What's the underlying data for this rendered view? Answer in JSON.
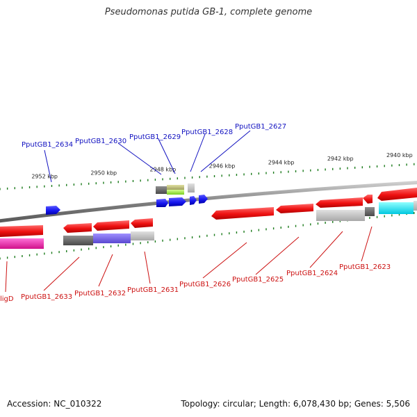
{
  "title": "Pseudomonas putida GB-1, complete genome",
  "footer": {
    "accession": "Accession: NC_010322",
    "summary": "Topology: circular; Length: 6,078,430 bp; Genes: 5,506"
  },
  "colors": {
    "forward_label": "#1010c0",
    "reverse_label": "#cc1010",
    "tick": "#1a7a1a",
    "backbone": "#808080",
    "gene_red": "#ee1111",
    "gene_blue": "#1515ee"
  },
  "scale_ticks": [
    {
      "kbp": 2952,
      "label": "2952 kbp"
    },
    {
      "kbp": 2950,
      "label": "2950 kbp"
    },
    {
      "kbp": 2948,
      "label": "2948 kbp"
    },
    {
      "kbp": 2946,
      "label": "2946 kbp"
    },
    {
      "kbp": 2944,
      "label": "2944 kbp"
    },
    {
      "kbp": 2942,
      "label": "2942 kbp"
    },
    {
      "kbp": 2940,
      "label": "2940 kbp"
    }
  ],
  "forward_genes": [
    {
      "id": "PputGB1_2634",
      "label": "PputGB1_2634"
    },
    {
      "id": "PputGB1_2630",
      "label": "PputGB1_2630"
    },
    {
      "id": "PputGB1_2629",
      "label": "PputGB1_2629"
    },
    {
      "id": "PputGB1_2628",
      "label": "PputGB1_2628"
    },
    {
      "id": "PputGB1_2627",
      "label": "PputGB1_2627"
    }
  ],
  "reverse_genes": [
    {
      "id": "ligD",
      "label": "ligD"
    },
    {
      "id": "PputGB1_2633",
      "label": "PputGB1_2633"
    },
    {
      "id": "PputGB1_2632",
      "label": "PputGB1_2632"
    },
    {
      "id": "PputGB1_2631",
      "label": "PputGB1_2631"
    },
    {
      "id": "PputGB1_2626",
      "label": "PputGB1_2626"
    },
    {
      "id": "PputGB1_2625",
      "label": "PputGB1_2625"
    },
    {
      "id": "PputGB1_2624",
      "label": "PputGB1_2624"
    },
    {
      "id": "PputGB1_2623",
      "label": "PputGB1_2623"
    }
  ]
}
